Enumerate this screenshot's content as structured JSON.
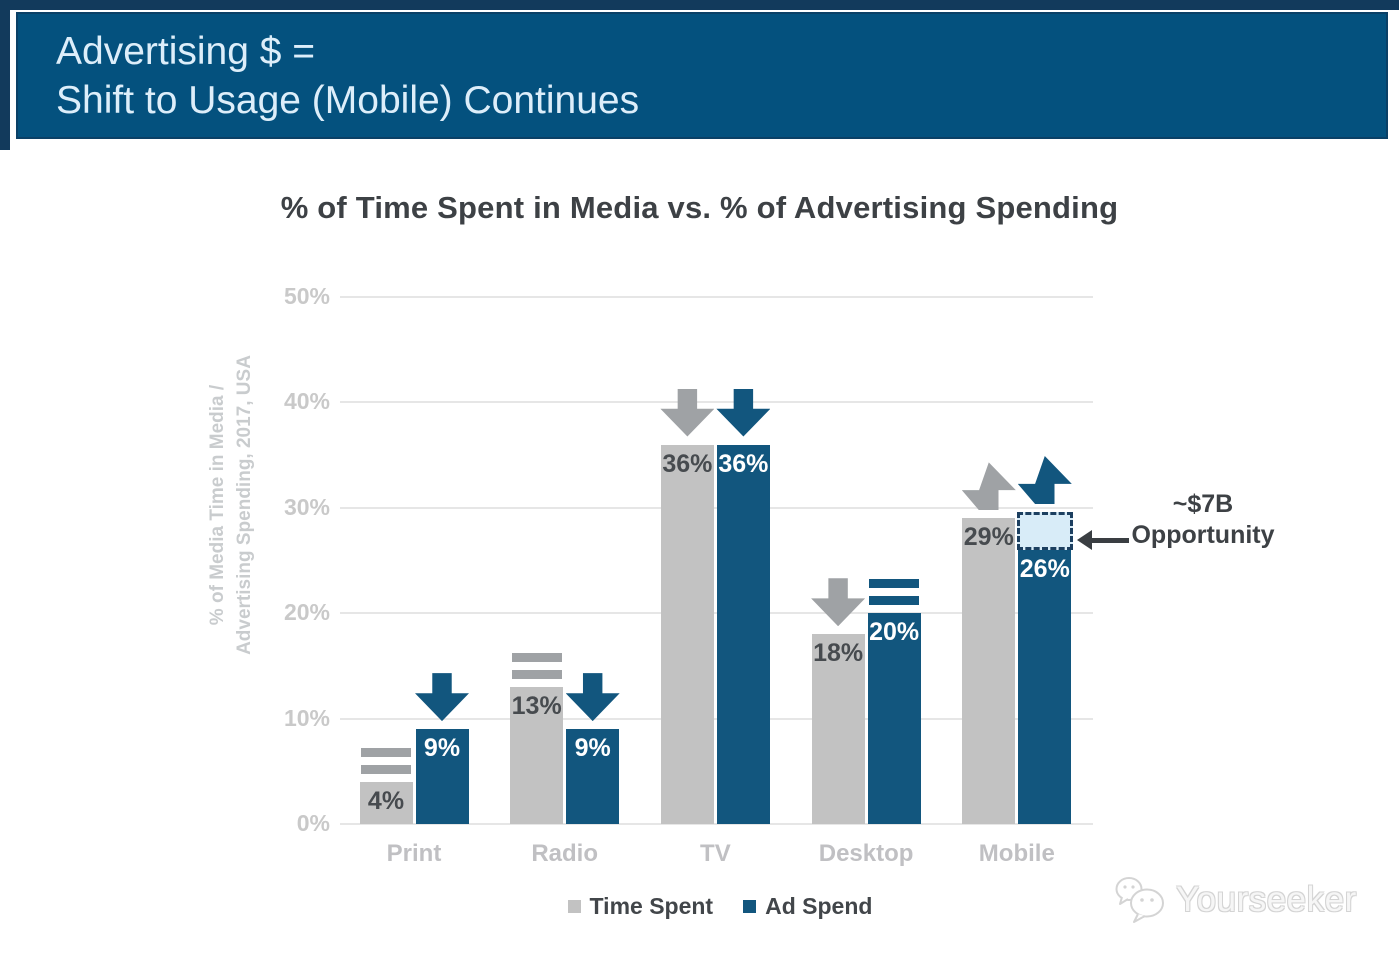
{
  "banner": {
    "line1": "Advertising $ =",
    "line2": "Shift to Usage (Mobile) Continues"
  },
  "chart_data": {
    "type": "bar",
    "title": "% of Time Spent in Media vs. % of Advertising Spending",
    "ylabel_line1": "% of Media Time in Media /",
    "ylabel_line2": "Advertising Spending, 2017, USA",
    "categories": [
      "Print",
      "Radio",
      "TV",
      "Desktop",
      "Mobile"
    ],
    "series": [
      {
        "name": "Time Spent",
        "color": "#c2c2c2",
        "label_color": "#474b4f",
        "trend_color": "#9fa2a5",
        "values": [
          4,
          13,
          36,
          18,
          29
        ],
        "trends": [
          "flat",
          "flat",
          "down",
          "down",
          "up"
        ]
      },
      {
        "name": "Ad Spend",
        "color": "#12567e",
        "label_color": "#ffffff",
        "trend_color": "#12567e",
        "values": [
          9,
          9,
          36,
          20,
          26
        ],
        "trends": [
          "down",
          "down",
          "down",
          "flat",
          "up"
        ]
      }
    ],
    "value_suffix": "%",
    "ylim": [
      0,
      50
    ],
    "yticks": [
      0,
      10,
      20,
      30,
      40,
      50
    ],
    "ytick_suffix": "%",
    "grid": true,
    "legend_position": "bottom",
    "annotation": {
      "line1": "~$7B",
      "line2": "Opportunity",
      "category": "Mobile",
      "series": "Ad Spend",
      "gap_from": 26,
      "gap_to": 29.6
    }
  },
  "colors": {
    "banner_bg": "#04517e",
    "banner_shadow": "#123a5c",
    "gridline": "#e6e6e6",
    "axis_text": "#c9c9c9",
    "title_text": "#3d4145",
    "opportunity_fill": "#d8ecf8",
    "opportunity_border": "#1c3f60"
  },
  "watermark": {
    "text": "Yourseeker"
  }
}
